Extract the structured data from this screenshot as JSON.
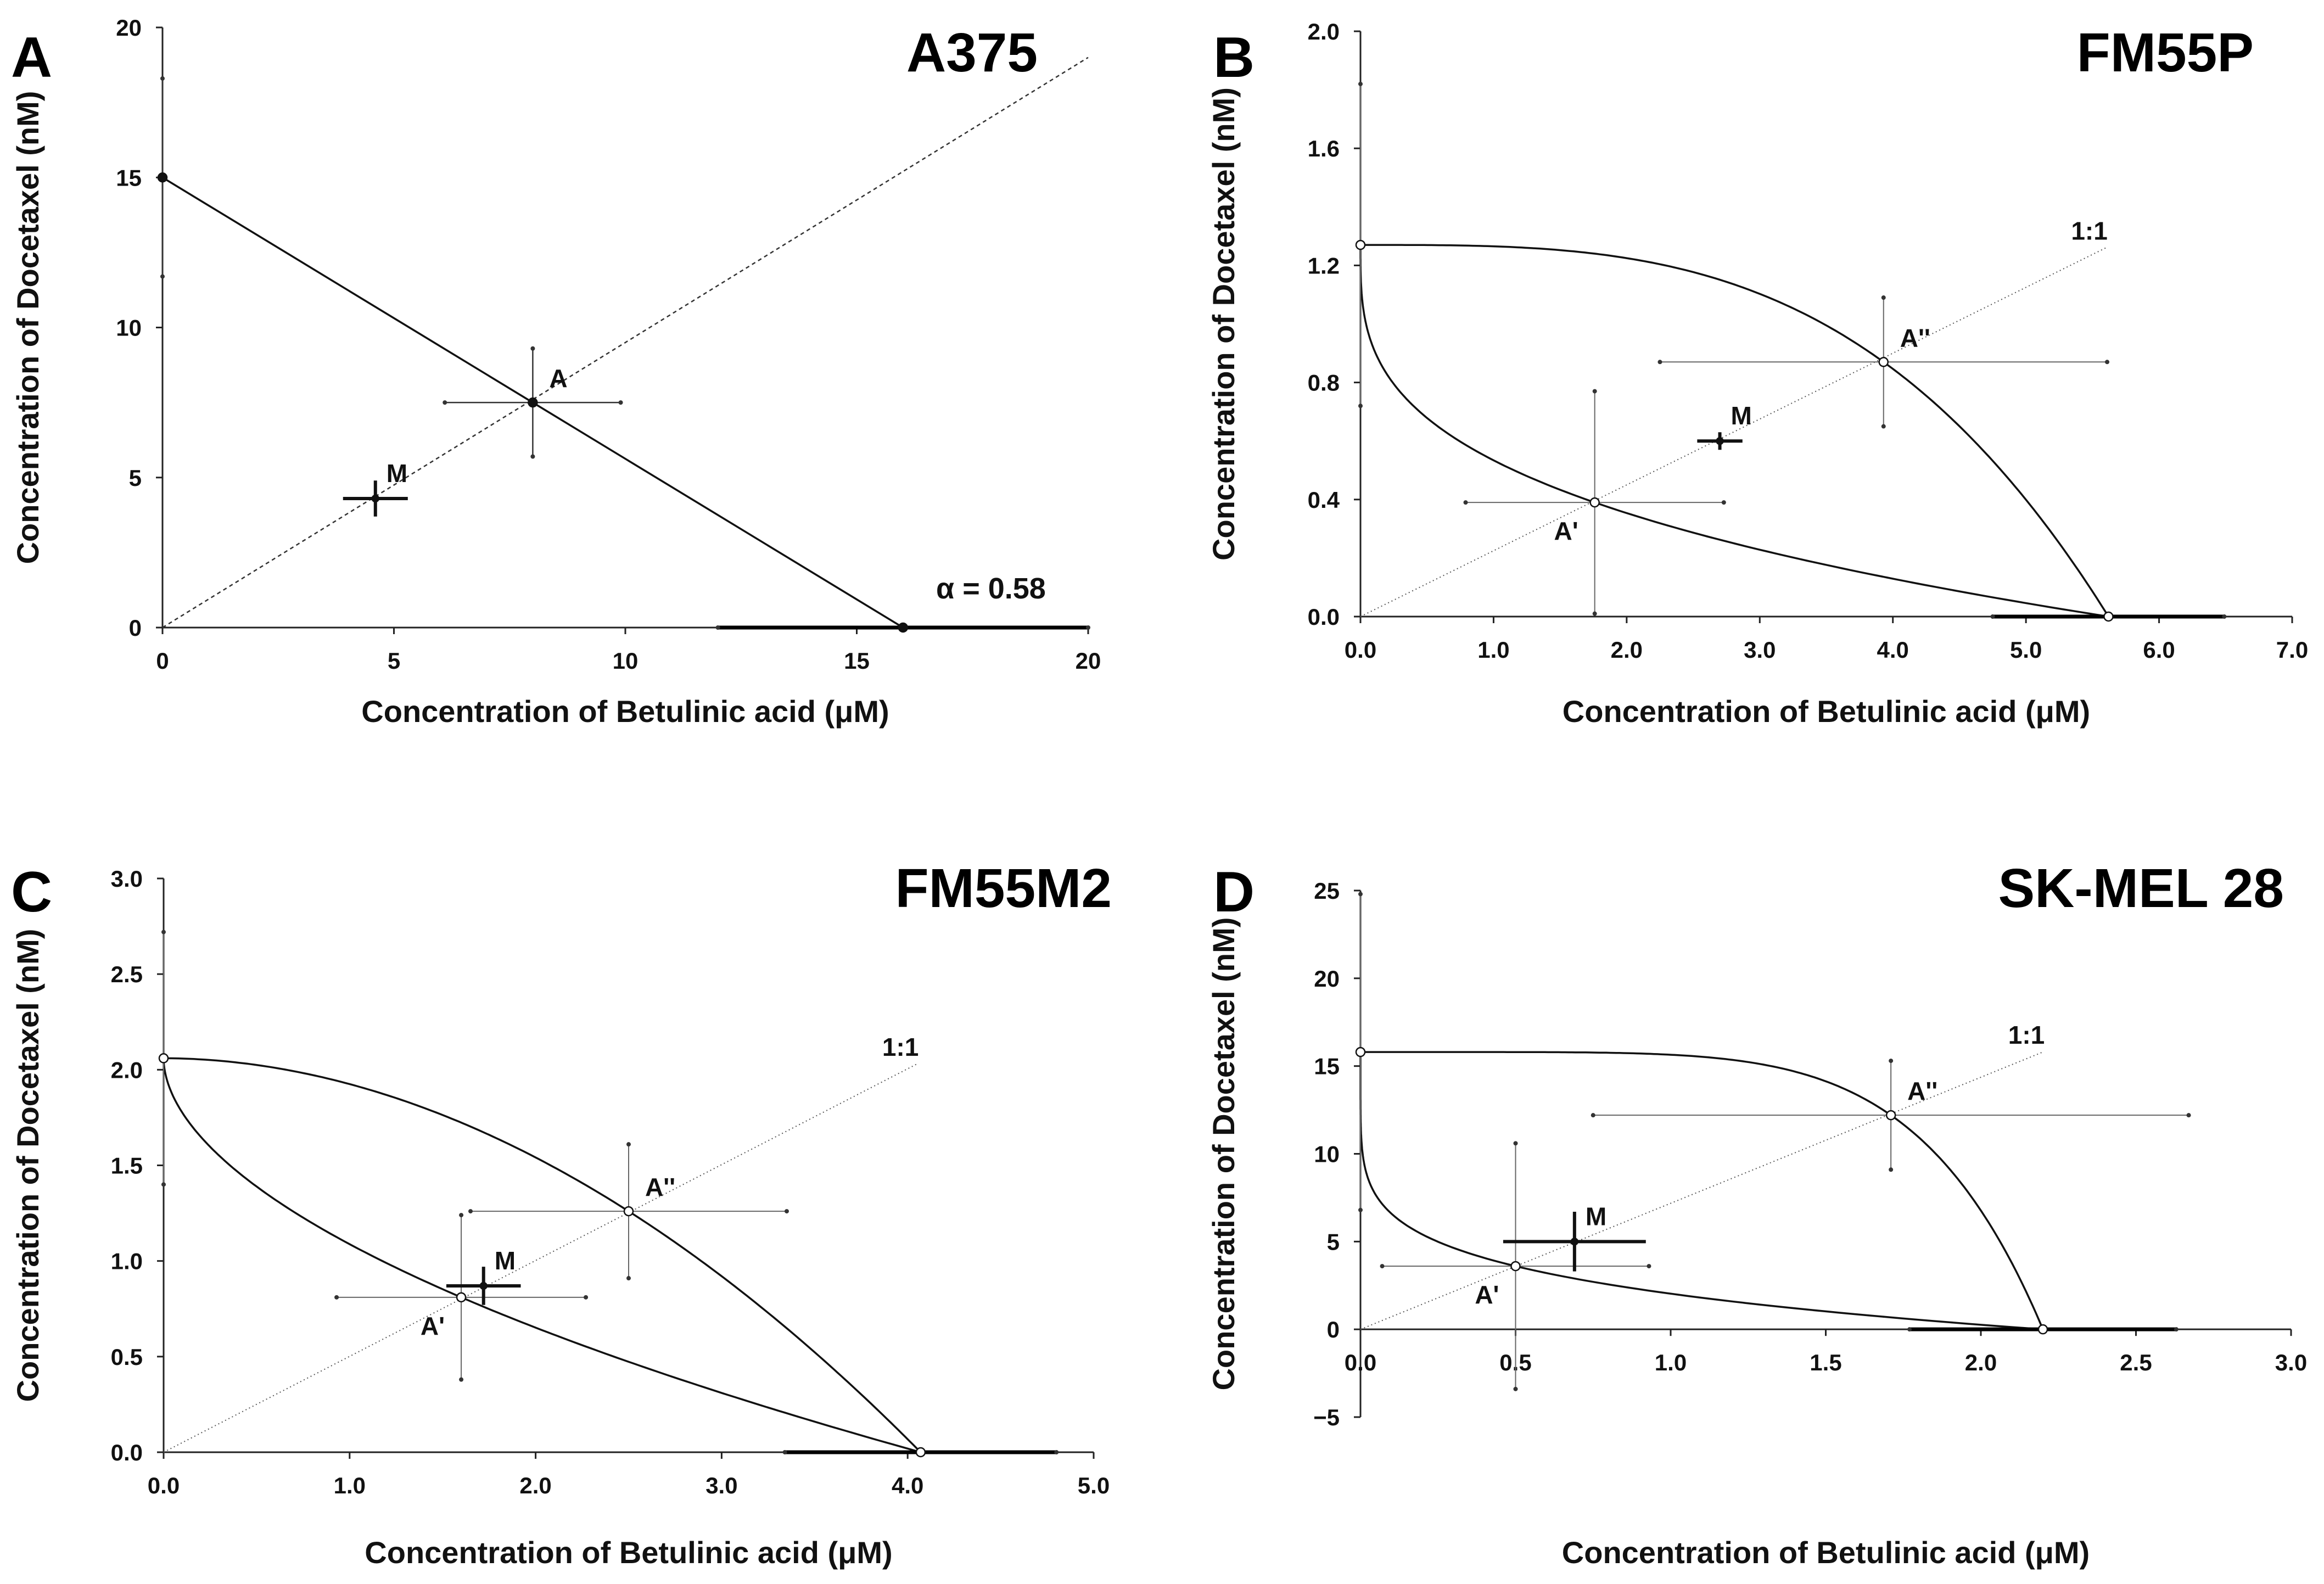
{
  "chart_data": [
    {
      "panel": "A",
      "type": "scatter",
      "title": "A375",
      "xlabel": "Concentration of Betulinic acid (μM)",
      "ylabel": "Concentration of Docetaxel (nM)",
      "xlim": [
        0,
        20
      ],
      "ylim": [
        0,
        20
      ],
      "xticks": [
        0,
        5,
        10,
        15,
        20
      ],
      "xtick_labels": [
        "0",
        "5",
        "10",
        "15",
        "20"
      ],
      "yticks": [
        0,
        5,
        10,
        15,
        20
      ],
      "ytick_labels": [
        "0",
        "5",
        "10",
        "15",
        "20"
      ],
      "annotation": "α = 0.58",
      "isobole": "linear",
      "ratio_line": {
        "x": [
          0,
          20
        ],
        "y": [
          0,
          19
        ]
      },
      "points": [
        {
          "label": "",
          "x": 0,
          "y": 15,
          "xerr": 0,
          "yerr": 3.3
        },
        {
          "label": "",
          "x": 16,
          "y": 0,
          "xerr": 4,
          "yerr": 0
        },
        {
          "label": "A",
          "x": 8,
          "y": 7.5,
          "xerr": 1.9,
          "yerr": 1.8
        },
        {
          "label": "M",
          "x": 4.6,
          "y": 4.3,
          "xerr": 0.7,
          "yerr": 0.6
        }
      ]
    },
    {
      "panel": "B",
      "type": "scatter",
      "title": "FM55P",
      "xlabel": "Concentration of Betulinic acid (μM)",
      "ylabel": "Concentration of Docetaxel (nM)",
      "xlim": [
        0,
        7
      ],
      "ylim": [
        0,
        2
      ],
      "xticks": [
        0,
        1,
        2,
        3,
        4,
        5,
        6,
        7
      ],
      "xtick_labels": [
        "0.0",
        "1.0",
        "2.0",
        "3.0",
        "4.0",
        "5.0",
        "6.0",
        "7.0"
      ],
      "yticks": [
        0,
        0.4,
        0.8,
        1.2,
        1.6,
        2.0
      ],
      "ytick_labels": [
        "0.0",
        "0.4",
        "0.8",
        "1.2",
        "1.6",
        "2.0"
      ],
      "ratio_label": "1:1",
      "isobole": "curved",
      "ratio_line": {
        "x": [
          0,
          5.6
        ],
        "y": [
          0,
          1.26
        ]
      },
      "points": [
        {
          "label": "",
          "x": 0,
          "y": 1.27,
          "xerr": 0,
          "yerr": 0.55
        },
        {
          "label": "",
          "x": 5.62,
          "y": 0,
          "xerr": 0.87,
          "yerr": 0
        },
        {
          "label": "A'",
          "x": 1.76,
          "y": 0.39,
          "xerr": 0.97,
          "yerr": 0.38
        },
        {
          "label": "A''",
          "x": 3.93,
          "y": 0.87,
          "xerr": 1.68,
          "yerr": 0.22
        },
        {
          "label": "M",
          "x": 2.7,
          "y": 0.6,
          "xerr": 0.17,
          "yerr": 0.03
        }
      ]
    },
    {
      "panel": "C",
      "type": "scatter",
      "title": "FM55M2",
      "xlabel": "Concentration of Betulinic acid (μM)",
      "ylabel": "Concentration of Docetaxel (nM)",
      "xlim": [
        0,
        5
      ],
      "ylim": [
        0,
        3
      ],
      "xticks": [
        0,
        1,
        2,
        3,
        4,
        5
      ],
      "xtick_labels": [
        "0.0",
        "1.0",
        "2.0",
        "3.0",
        "4.0",
        "5.0"
      ],
      "yticks": [
        0,
        0.5,
        1.0,
        1.5,
        2.0,
        2.5,
        3.0
      ],
      "ytick_labels": [
        "0.0",
        "0.5",
        "1.0",
        "1.5",
        "2.0",
        "2.5",
        "3.0"
      ],
      "ratio_label": "1:1",
      "isobole": "curved",
      "ratio_line": {
        "x": [
          0,
          4.05
        ],
        "y": [
          0,
          2.03
        ]
      },
      "points": [
        {
          "label": "",
          "x": 0,
          "y": 2.06,
          "xerr": 0,
          "yerr": 0.66
        },
        {
          "label": "",
          "x": 4.07,
          "y": 0,
          "xerr": 0.73,
          "yerr": 0
        },
        {
          "label": "A'",
          "x": 1.6,
          "y": 0.81,
          "xerr": 0.67,
          "yerr": 0.43
        },
        {
          "label": "A''",
          "x": 2.5,
          "y": 1.26,
          "xerr": 0.85,
          "yerr": 0.35
        },
        {
          "label": "M",
          "x": 1.72,
          "y": 0.87,
          "xerr": 0.2,
          "yerr": 0.1
        }
      ]
    },
    {
      "panel": "D",
      "type": "scatter",
      "title": "SK-MEL 28",
      "xlabel": "Concentration of Betulinic acid (μM)",
      "ylabel": "Concentration of Docetaxel (nM)",
      "xlim": [
        0,
        3
      ],
      "ylim": [
        -5,
        25
      ],
      "xticks": [
        0,
        0.5,
        1.0,
        1.5,
        2.0,
        2.5,
        3.0
      ],
      "xtick_labels": [
        "0.0",
        "0.5",
        "1.0",
        "1.5",
        "2.0",
        "2.5",
        "3.0"
      ],
      "yticks": [
        -5,
        0,
        5,
        10,
        15,
        20,
        25
      ],
      "ytick_labels": [
        "−5",
        "0",
        "5",
        "10",
        "15",
        "20",
        "25"
      ],
      "ratio_label": "1:1",
      "isobole": "curved",
      "ratio_line": {
        "x": [
          0,
          2.2
        ],
        "y": [
          0,
          15.8
        ]
      },
      "points": [
        {
          "label": "",
          "x": 0,
          "y": 15.8,
          "xerr": 0,
          "yerr": 9
        },
        {
          "label": "",
          "x": 2.2,
          "y": 0,
          "xerr": 0.43,
          "yerr": 0
        },
        {
          "label": "A'",
          "x": 0.5,
          "y": 3.6,
          "xerr": 0.43,
          "yerr": 7
        },
        {
          "label": "A''",
          "x": 1.71,
          "y": 12.2,
          "xerr": 0.96,
          "yerr": 3.1
        },
        {
          "label": "M",
          "x": 0.69,
          "y": 5.0,
          "xerr": 0.23,
          "yerr": 1.7
        }
      ]
    }
  ]
}
